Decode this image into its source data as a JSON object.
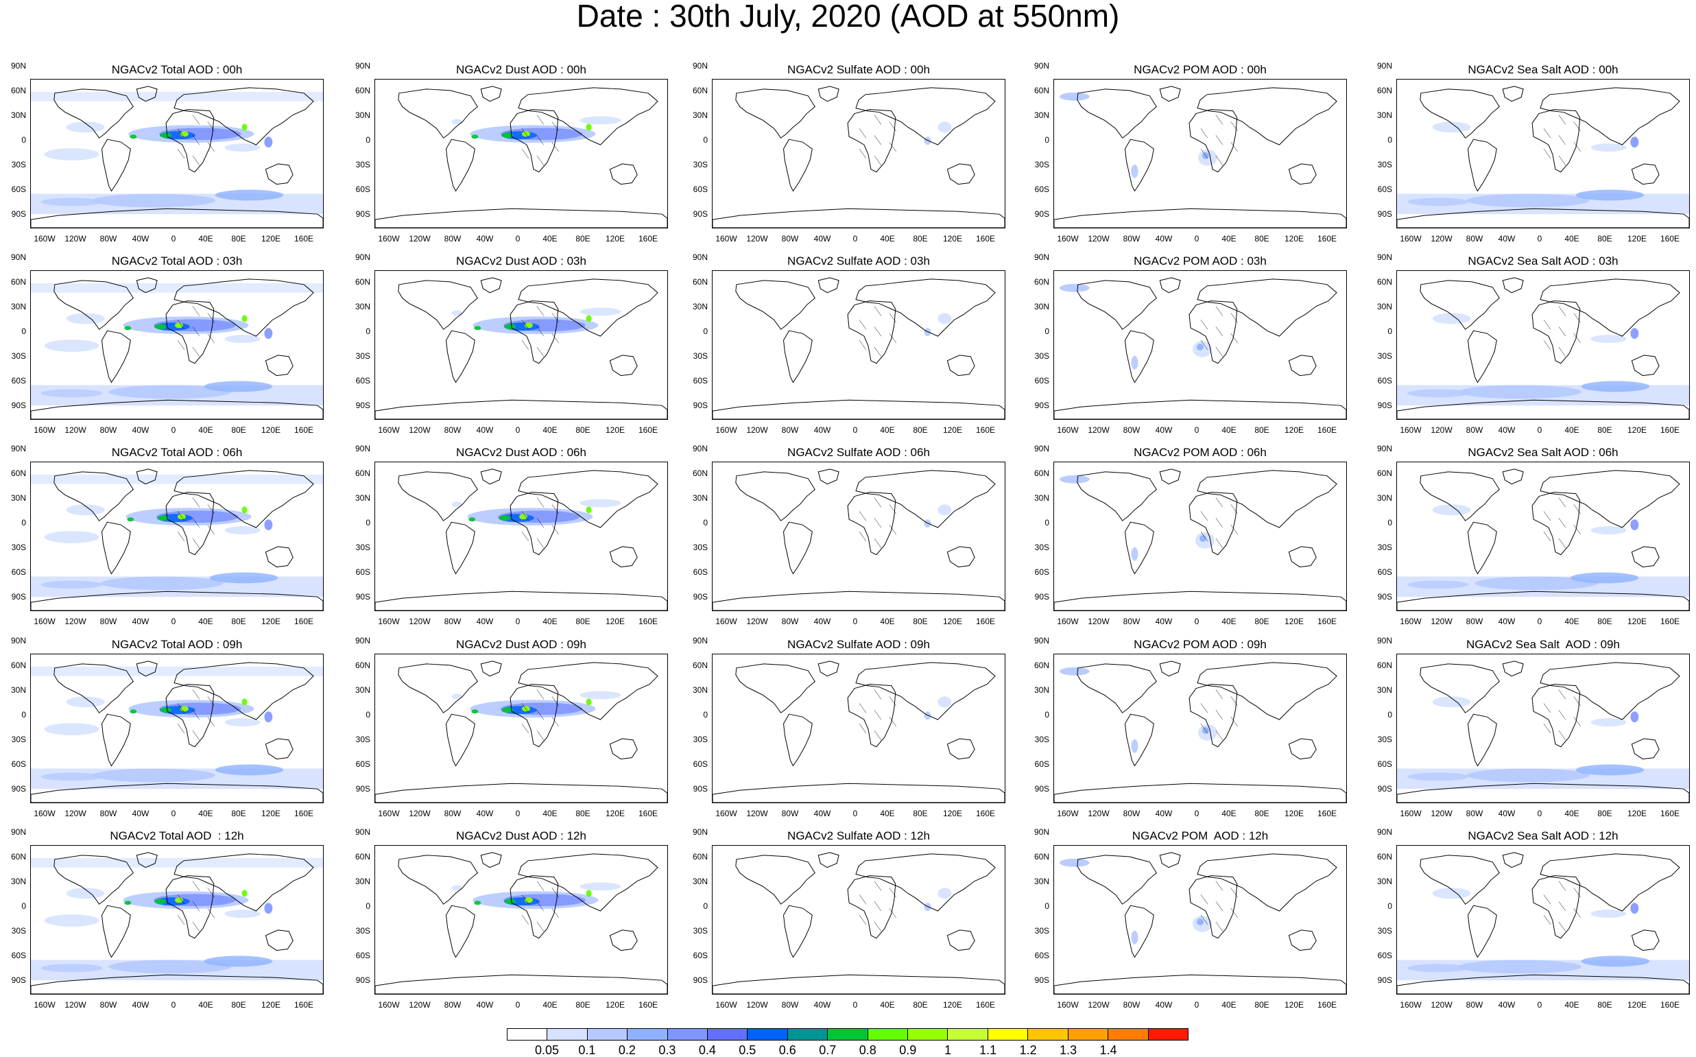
{
  "title": "Date : 30th July, 2020 (AOD at 550nm)",
  "lat_ticks": [
    "90N",
    "60N",
    "30N",
    "0",
    "30S",
    "60S",
    "90S"
  ],
  "lon_ticks": [
    "160W",
    "120W",
    "80W",
    "40W",
    "0",
    "40E",
    "80E",
    "120E",
    "160E"
  ],
  "panels": [
    {
      "title": "NGACv2 Total AOD : 00h",
      "species": "total",
      "hour": "00h"
    },
    {
      "title": "NGACv2 Dust AOD : 00h",
      "species": "dust",
      "hour": "00h"
    },
    {
      "title": "NGACv2 Sulfate AOD : 00h",
      "species": "sulfate",
      "hour": "00h"
    },
    {
      "title": "NGACv2 POM AOD : 00h",
      "species": "pom",
      "hour": "00h"
    },
    {
      "title": "NGACv2 Sea Salt AOD : 00h",
      "species": "seasalt",
      "hour": "00h"
    },
    {
      "title": "NGACv2 Total AOD : 03h",
      "species": "total",
      "hour": "03h"
    },
    {
      "title": "NGACv2 Dust AOD : 03h",
      "species": "dust",
      "hour": "03h"
    },
    {
      "title": "NGACv2 Sulfate AOD : 03h",
      "species": "sulfate",
      "hour": "03h"
    },
    {
      "title": "NGACv2 POM AOD : 03h",
      "species": "pom",
      "hour": "03h"
    },
    {
      "title": "NGACv2 Sea Salt AOD : 03h",
      "species": "seasalt",
      "hour": "03h"
    },
    {
      "title": "NGACv2 Total AOD : 06h",
      "species": "total",
      "hour": "06h"
    },
    {
      "title": "NGACv2 Dust AOD : 06h",
      "species": "dust",
      "hour": "06h"
    },
    {
      "title": "NGACv2 Sulfate AOD : 06h",
      "species": "sulfate",
      "hour": "06h"
    },
    {
      "title": "NGACv2 POM AOD : 06h",
      "species": "pom",
      "hour": "06h"
    },
    {
      "title": "NGACv2 Sea Salt AOD : 06h",
      "species": "seasalt",
      "hour": "06h"
    },
    {
      "title": "NGACv2 Total AOD : 09h",
      "species": "total",
      "hour": "09h"
    },
    {
      "title": "NGACv2 Dust AOD : 09h",
      "species": "dust",
      "hour": "09h"
    },
    {
      "title": "NGACv2 Sulfate AOD : 09h",
      "species": "sulfate",
      "hour": "09h"
    },
    {
      "title": "NGACv2 POM AOD : 09h",
      "species": "pom",
      "hour": "09h"
    },
    {
      "title": "NGACv2 Sea Salt  AOD : 09h",
      "species": "seasalt",
      "hour": "09h"
    },
    {
      "title": "NGACv2 Total AOD  : 12h",
      "species": "total",
      "hour": "12h"
    },
    {
      "title": "NGACv2 Dust AOD : 12h",
      "species": "dust",
      "hour": "12h"
    },
    {
      "title": "NGACv2 Sulfate AOD : 12h",
      "species": "sulfate",
      "hour": "12h"
    },
    {
      "title": "NGACv2 POM  AOD : 12h",
      "species": "pom",
      "hour": "12h"
    },
    {
      "title": "NGACv2 Sea Salt AOD : 12h",
      "species": "seasalt",
      "hour": "12h"
    }
  ],
  "colorbar": {
    "labels": [
      "0.05",
      "0.1",
      "0.2",
      "0.3",
      "0.4",
      "0.5",
      "0.6",
      "0.7",
      "0.8",
      "0.9",
      "1",
      "1.1",
      "1.2",
      "1.3",
      "1.4"
    ],
    "colors": [
      "#ffffff",
      "#d6e2ff",
      "#b5c9ff",
      "#8eb2ff",
      "#7f96ff",
      "#6370ff",
      "#0063ff",
      "#009696",
      "#00c633",
      "#63ff00",
      "#96ff00",
      "#c6ff33",
      "#ffff00",
      "#ffc600",
      "#ffa000",
      "#ff7c00",
      "#ff1900"
    ]
  }
}
